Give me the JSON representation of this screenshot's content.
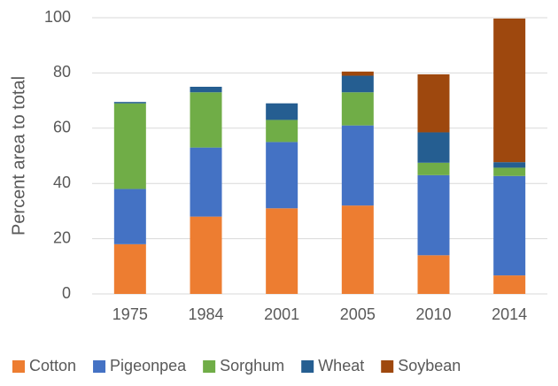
{
  "chart_data": {
    "type": "stacked_bar",
    "y_label": "Percent area to total",
    "categories": [
      "1975",
      "1984",
      "2001",
      "2005",
      "2010",
      "2014"
    ],
    "series": [
      {
        "name": "Cotton",
        "color": "#ed7d31",
        "values": [
          18,
          28,
          31,
          32,
          14,
          6.7
        ]
      },
      {
        "name": "Pigeonpea",
        "color": "#4472c4",
        "values": [
          20,
          25,
          24,
          29,
          29,
          36
        ]
      },
      {
        "name": "Sorghum",
        "color": "#70ad47",
        "values": [
          31,
          20,
          8,
          12,
          4.5,
          3
        ]
      },
      {
        "name": "Wheat",
        "color": "#255e91",
        "values": [
          0.5,
          2,
          6,
          6,
          11,
          2
        ]
      },
      {
        "name": "Soybean",
        "color": "#9e480e",
        "values": [
          0,
          0,
          0,
          1.5,
          21,
          52
        ]
      }
    ],
    "ylim": [
      0,
      100
    ],
    "yticks": [
      0,
      20,
      40,
      60,
      80,
      100
    ],
    "grid": true,
    "legend": "bottom"
  }
}
